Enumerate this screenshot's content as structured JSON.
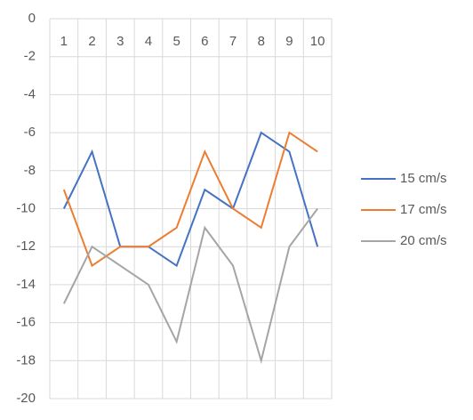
{
  "chart_data": {
    "type": "line",
    "x": [
      1,
      2,
      3,
      4,
      5,
      6,
      7,
      8,
      9,
      10
    ],
    "ylim": [
      -20,
      0
    ],
    "yticks": [
      0,
      -2,
      -4,
      -6,
      -8,
      -10,
      -12,
      -14,
      -16,
      -18,
      -20
    ],
    "grid": true,
    "legend_position": "right",
    "series": [
      {
        "name": "15 cm/s",
        "color": "#4472c4",
        "values": [
          -10,
          -7,
          -12,
          -12,
          -13,
          -9,
          -10,
          -6,
          -7,
          -12
        ]
      },
      {
        "name": "17 cm/s",
        "color": "#ed7d31",
        "values": [
          -9,
          -13,
          -12,
          -12,
          -11,
          -7,
          -10,
          -11,
          -6,
          -7
        ]
      },
      {
        "name": "20 cm/s",
        "color": "#a5a5a5",
        "values": [
          -15,
          -12,
          -13,
          -14,
          -17,
          -11,
          -13,
          -18,
          -12,
          -10
        ]
      }
    ]
  }
}
